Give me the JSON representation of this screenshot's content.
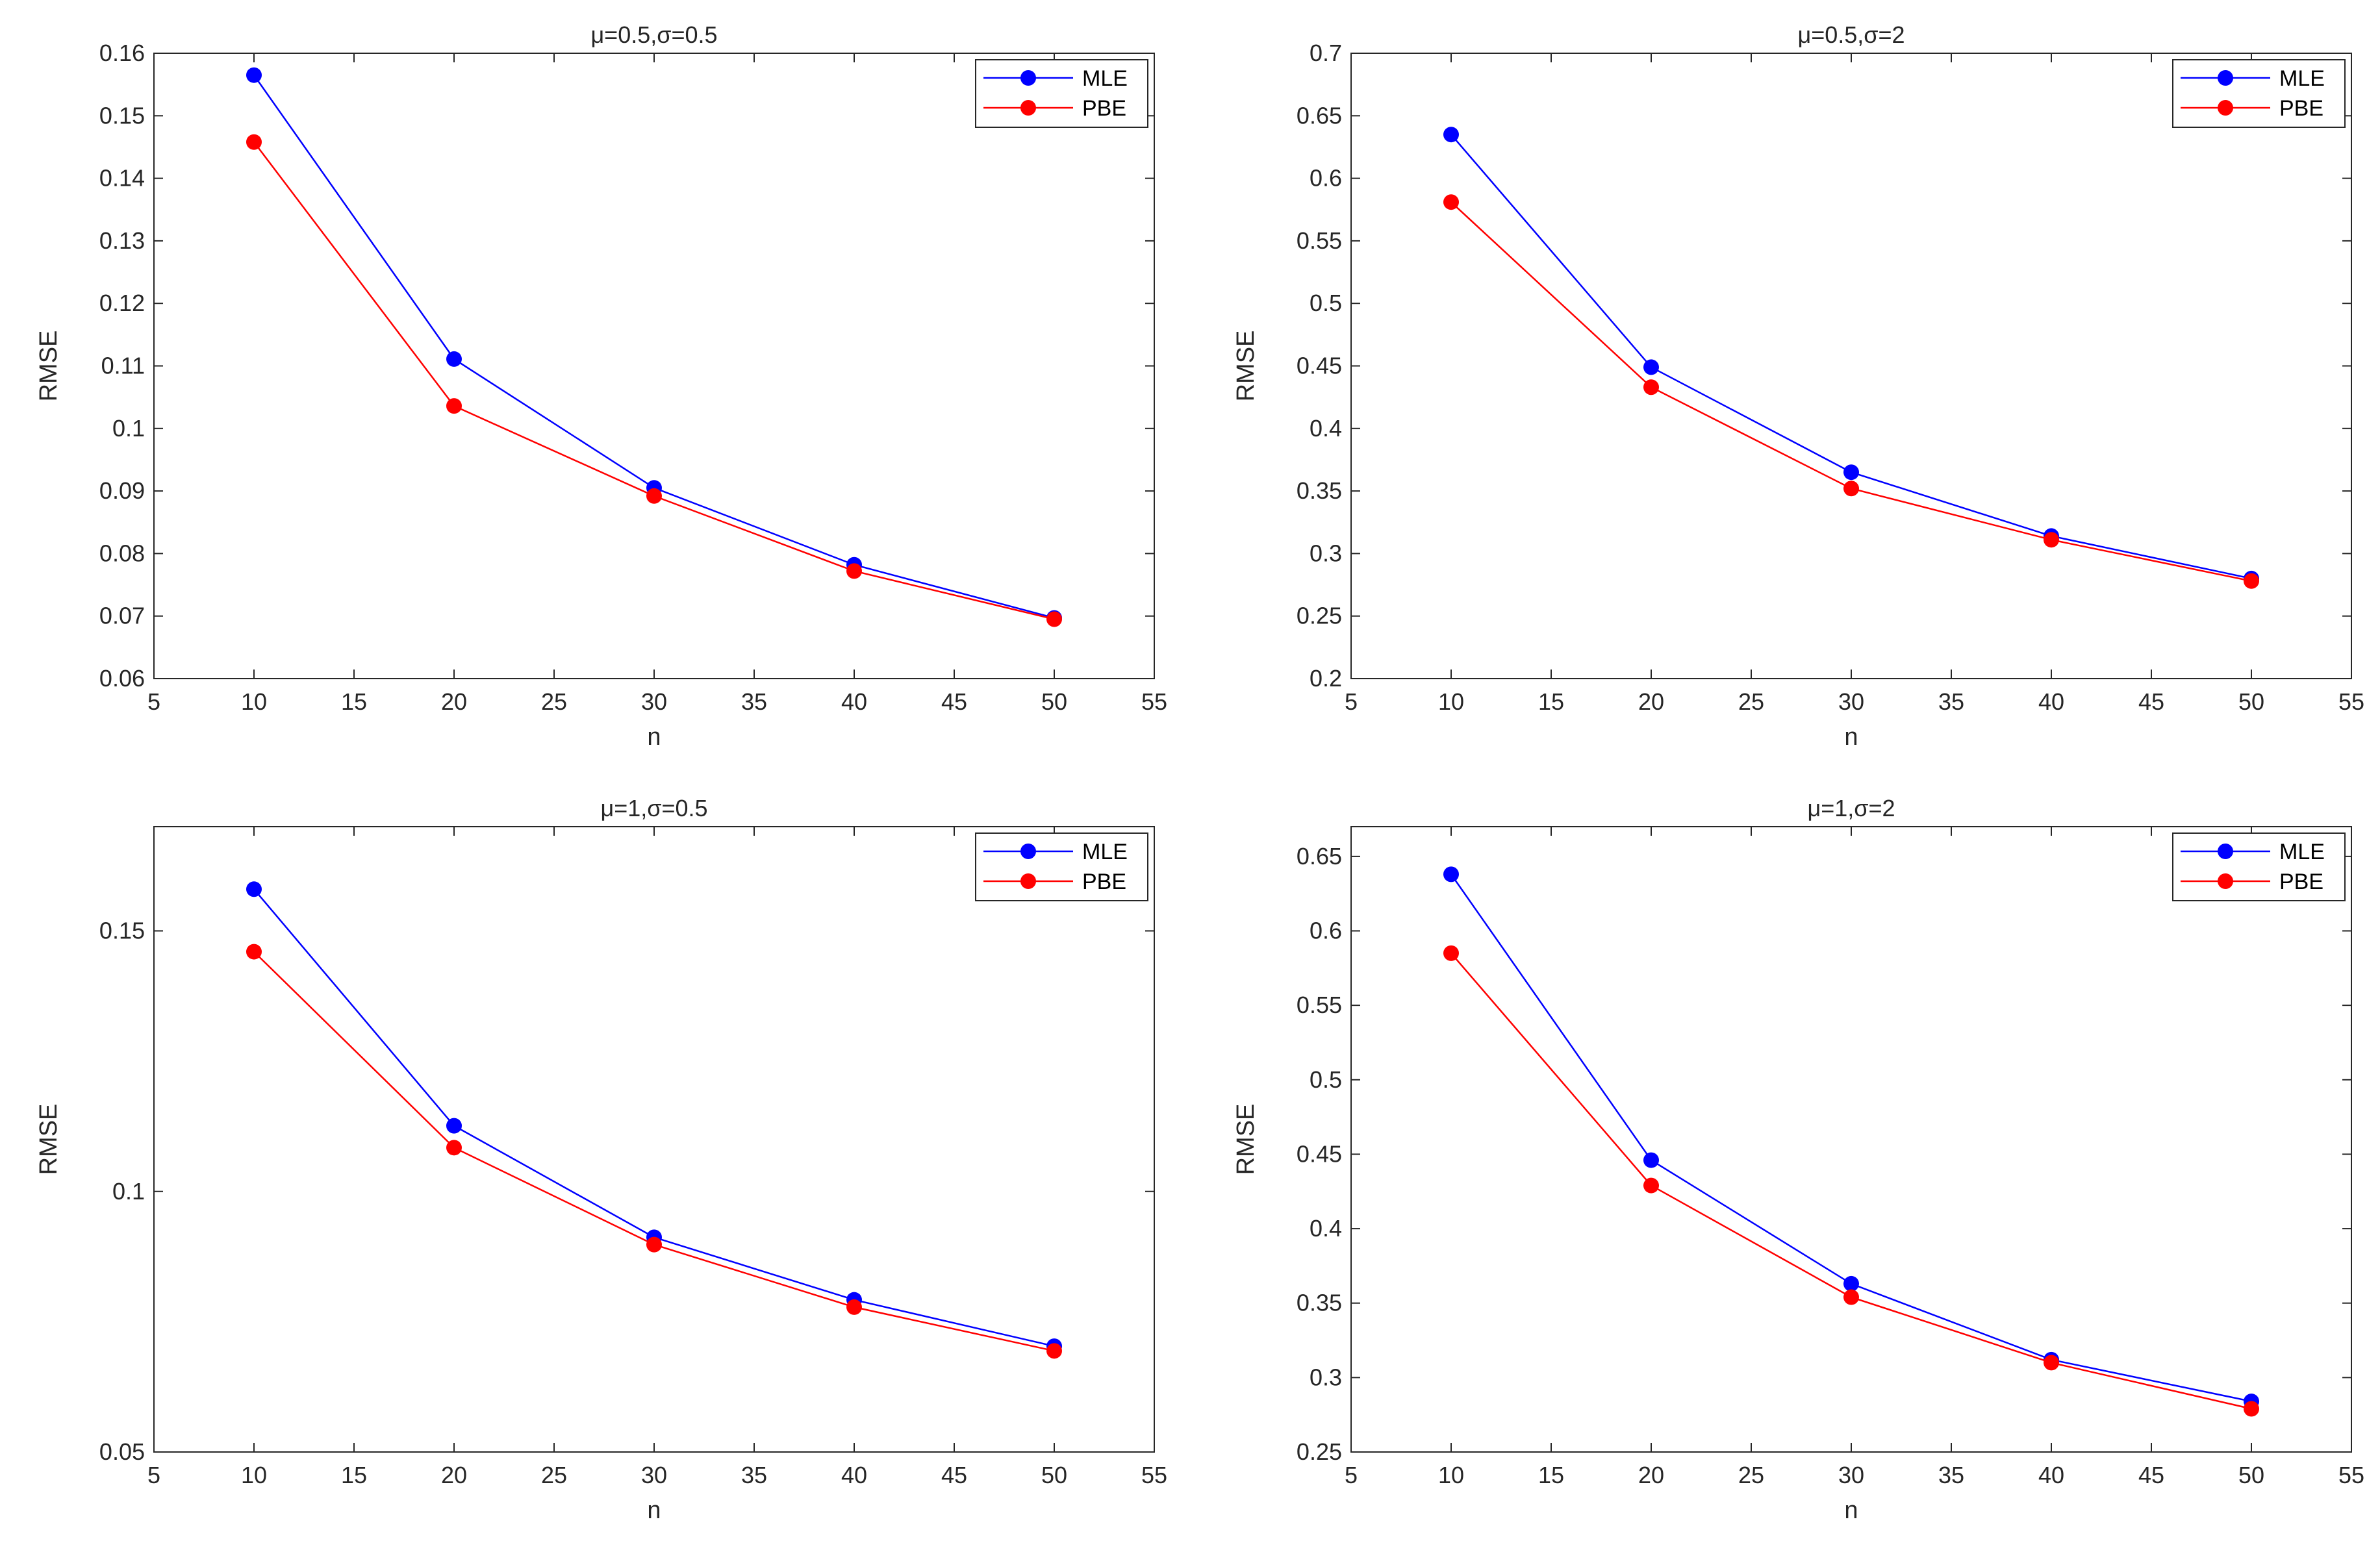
{
  "chart_data": [
    {
      "type": "line",
      "title": "μ=0.5,σ=0.5",
      "xlabel": "n",
      "ylabel": "RMSE",
      "xlim": [
        5,
        55
      ],
      "ylim": [
        0.06,
        0.16
      ],
      "xticks": [
        5,
        10,
        15,
        20,
        25,
        30,
        35,
        40,
        45,
        50,
        55
      ],
      "xtick_labels": [
        "5",
        "10",
        "15",
        "20",
        "25",
        "30",
        "35",
        "40",
        "45",
        "50",
        "55"
      ],
      "yticks": [
        0.06,
        0.07,
        0.08,
        0.09,
        0.1,
        0.11,
        0.12,
        0.13,
        0.14,
        0.15,
        0.16
      ],
      "ytick_labels": [
        "0.06",
        "0.07",
        "0.08",
        "0.09",
        "0.1",
        "0.11",
        "0.12",
        "0.13",
        "0.14",
        "0.15",
        "0.16"
      ],
      "x": [
        10,
        20,
        30,
        40,
        50
      ],
      "series": [
        {
          "name": "MLE",
          "color": "#0000ff",
          "values": [
            0.1565,
            0.1111,
            0.0905,
            0.0782,
            0.0697
          ]
        },
        {
          "name": "PBE",
          "color": "#ff0000",
          "values": [
            0.1458,
            0.1036,
            0.0892,
            0.0772,
            0.0695
          ]
        }
      ],
      "legend": "top-right",
      "grid": false
    },
    {
      "type": "line",
      "title": "μ=0.5,σ=2",
      "xlabel": "n",
      "ylabel": "RMSE",
      "xlim": [
        5,
        55
      ],
      "ylim": [
        0.2,
        0.7
      ],
      "xticks": [
        5,
        10,
        15,
        20,
        25,
        30,
        35,
        40,
        45,
        50,
        55
      ],
      "xtick_labels": [
        "5",
        "10",
        "15",
        "20",
        "25",
        "30",
        "35",
        "40",
        "45",
        "50",
        "55"
      ],
      "yticks": [
        0.2,
        0.25,
        0.3,
        0.35,
        0.4,
        0.45,
        0.5,
        0.55,
        0.6,
        0.65,
        0.7
      ],
      "ytick_labels": [
        "0.2",
        "0.25",
        "0.3",
        "0.35",
        "0.4",
        "0.45",
        "0.5",
        "0.55",
        "0.6",
        "0.65",
        "0.7"
      ],
      "x": [
        10,
        20,
        30,
        40,
        50
      ],
      "series": [
        {
          "name": "MLE",
          "color": "#0000ff",
          "values": [
            0.635,
            0.449,
            0.365,
            0.314,
            0.28
          ]
        },
        {
          "name": "PBE",
          "color": "#ff0000",
          "values": [
            0.581,
            0.433,
            0.352,
            0.311,
            0.278
          ]
        }
      ],
      "legend": "top-right",
      "grid": false
    },
    {
      "type": "line",
      "title": "μ=1,σ=0.5",
      "xlabel": "n",
      "ylabel": "RMSE",
      "xlim": [
        5,
        55
      ],
      "ylim": [
        0.05,
        0.17
      ],
      "xticks": [
        5,
        10,
        15,
        20,
        25,
        30,
        35,
        40,
        45,
        50,
        55
      ],
      "xtick_labels": [
        "5",
        "10",
        "15",
        "20",
        "25",
        "30",
        "35",
        "40",
        "45",
        "50",
        "55"
      ],
      "yticks": [
        0.05,
        0.1,
        0.15
      ],
      "ytick_labels": [
        "0.05",
        "0.1",
        "0.15"
      ],
      "x": [
        10,
        20,
        30,
        40,
        50
      ],
      "series": [
        {
          "name": "MLE",
          "color": "#0000ff",
          "values": [
            0.158,
            0.1126,
            0.0912,
            0.0792,
            0.0703
          ]
        },
        {
          "name": "PBE",
          "color": "#ff0000",
          "values": [
            0.146,
            0.1084,
            0.0898,
            0.0778,
            0.0694
          ]
        }
      ],
      "legend": "top-right",
      "grid": false
    },
    {
      "type": "line",
      "title": "μ=1,σ=2",
      "xlabel": "n",
      "ylabel": "RMSE",
      "xlim": [
        5,
        55
      ],
      "ylim": [
        0.25,
        0.67
      ],
      "xticks": [
        5,
        10,
        15,
        20,
        25,
        30,
        35,
        40,
        45,
        50,
        55
      ],
      "xtick_labels": [
        "5",
        "10",
        "15",
        "20",
        "25",
        "30",
        "35",
        "40",
        "45",
        "50",
        "55"
      ],
      "yticks": [
        0.25,
        0.3,
        0.35,
        0.4,
        0.45,
        0.5,
        0.55,
        0.6,
        0.65
      ],
      "ytick_labels": [
        "0.25",
        "0.3",
        "0.35",
        "0.4",
        "0.45",
        "0.5",
        "0.55",
        "0.6",
        "0.65"
      ],
      "x": [
        10,
        20,
        30,
        40,
        50
      ],
      "series": [
        {
          "name": "MLE",
          "color": "#0000ff",
          "values": [
            0.638,
            0.446,
            0.363,
            0.312,
            0.284
          ]
        },
        {
          "name": "PBE",
          "color": "#ff0000",
          "values": [
            0.585,
            0.429,
            0.354,
            0.31,
            0.279
          ]
        }
      ],
      "legend": "top-right",
      "grid": false
    }
  ]
}
